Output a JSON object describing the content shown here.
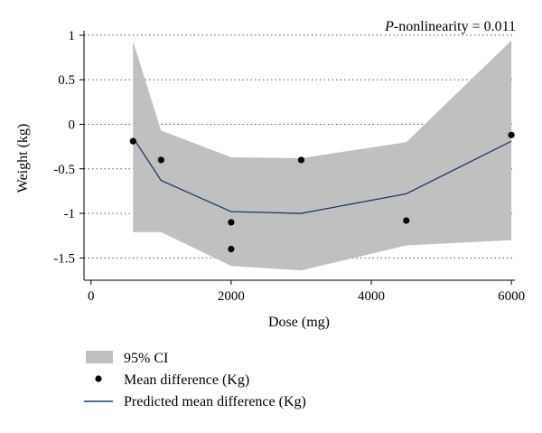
{
  "chart_data": {
    "type": "line",
    "title": "",
    "xlabel": "Dose (mg)",
    "ylabel": "Weight (kg)",
    "xlim": [
      -100,
      6050
    ],
    "ylim": [
      -1.75,
      1.05
    ],
    "xticks": [
      0,
      2000,
      4000,
      6000
    ],
    "xtick_labels": [
      "0",
      "2000",
      "4000",
      "6000"
    ],
    "yticks": [
      1,
      0.5,
      0,
      -0.5,
      -1,
      -1.5
    ],
    "ytick_labels": [
      "1",
      "0.5",
      "0",
      "-0.5",
      "-1",
      "-1.5"
    ],
    "grid": "horizontal-dotted",
    "annotation": {
      "italic": "P",
      "text": "-nonlinearity = 0.011"
    },
    "ci_band": {
      "name": "95% CI",
      "color": "#c0c0c0",
      "upper": [
        [
          600,
          0.93
        ],
        [
          1000,
          -0.07
        ],
        [
          2000,
          -0.37
        ],
        [
          3000,
          -0.38
        ],
        [
          4500,
          -0.2
        ],
        [
          6000,
          0.94
        ]
      ],
      "lower": [
        [
          600,
          -1.21
        ],
        [
          1000,
          -1.21
        ],
        [
          2000,
          -1.59
        ],
        [
          3000,
          -1.64
        ],
        [
          4500,
          -1.36
        ],
        [
          6000,
          -1.3
        ]
      ]
    },
    "points": {
      "name": "Mean difference (Kg)",
      "color": "#000000",
      "data": [
        [
          600,
          -0.19
        ],
        [
          1000,
          -0.4
        ],
        [
          2000,
          -1.1
        ],
        [
          2000,
          -1.4
        ],
        [
          3000,
          -0.4
        ],
        [
          4500,
          -1.08
        ],
        [
          6000,
          -0.12
        ]
      ]
    },
    "predicted": {
      "name": "Predicted mean difference (Kg)",
      "color": "#1f3a68",
      "data": [
        [
          600,
          -0.15
        ],
        [
          1000,
          -0.63
        ],
        [
          2000,
          -0.98
        ],
        [
          3000,
          -1.0
        ],
        [
          4500,
          -0.78
        ],
        [
          6000,
          -0.19
        ]
      ]
    },
    "legend_placement": "bottom-left",
    "legend": [
      "95% CI",
      "Mean difference (Kg)",
      "Predicted mean difference (Kg)"
    ]
  }
}
